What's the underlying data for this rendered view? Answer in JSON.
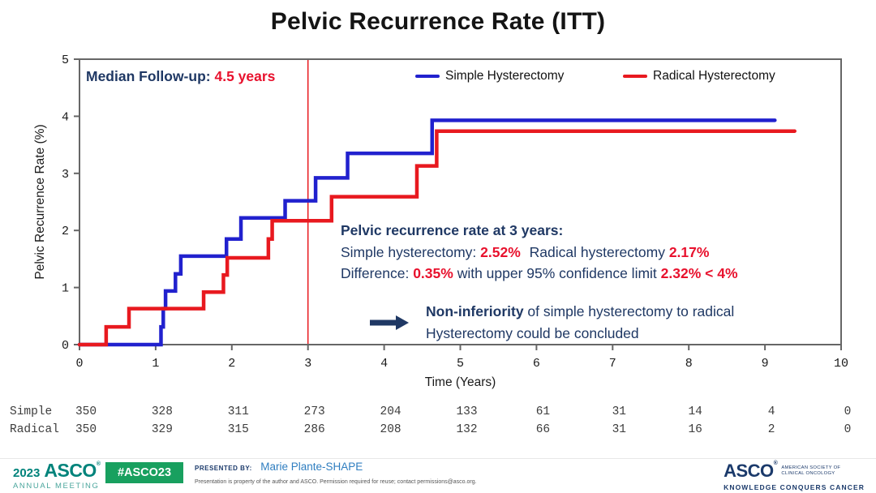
{
  "title": "Pelvic Recurrence Rate (ITT)",
  "median_followup": {
    "label": "Median Follow-up:",
    "value": "4.5 years"
  },
  "annotation": {
    "heading": "Pelvic recurrence rate at 3 years:",
    "simple_label": "Simple hysterectomy:",
    "simple_value": "2.52%",
    "radical_label": "Radical hysterectomy",
    "radical_value": "2.17%",
    "diff_label": "Difference:",
    "diff_value": "0.35%",
    "diff_mid": "with upper 95% confidence limit",
    "diff_limit": "2.32% < 4%"
  },
  "conclusion": {
    "bold": "Non-inferiority",
    "line1_rest": " of simple hysterectomy to radical",
    "line2": "Hysterectomy could be concluded"
  },
  "chart_data": {
    "type": "line",
    "step": true,
    "title": "Pelvic Recurrence Rate (ITT)",
    "xlabel": "Time (Years)",
    "ylabel": "Pelvic Recurrence Rate (%)",
    "xlim": [
      0,
      10
    ],
    "ylim": [
      0,
      5
    ],
    "x_ticks": [
      0,
      1,
      2,
      3,
      4,
      5,
      6,
      7,
      8,
      9,
      10
    ],
    "y_ticks": [
      0,
      1,
      2,
      3,
      4,
      5
    ],
    "grid": false,
    "legend_position": "top-inside",
    "reference_line_x": 3,
    "series": [
      {
        "name": "Simple Hysterectomy",
        "color": "#2121CE",
        "start": [
          0,
          0
        ],
        "steps": [
          [
            1.07,
            0.31
          ],
          [
            1.1,
            0.63
          ],
          [
            1.13,
            0.94
          ],
          [
            1.26,
            1.24
          ],
          [
            1.33,
            1.55
          ],
          [
            1.93,
            1.85
          ],
          [
            2.12,
            2.22
          ],
          [
            2.7,
            2.52
          ],
          [
            3.1,
            2.92
          ],
          [
            3.52,
            3.35
          ],
          [
            4.63,
            3.93
          ]
        ],
        "end_x": 9.13,
        "value_at_3_years": "2.52%"
      },
      {
        "name": "Radical Hysterectomy",
        "color": "#E8191F",
        "start": [
          0,
          0
        ],
        "steps": [
          [
            0.35,
            0.31
          ],
          [
            0.65,
            0.63
          ],
          [
            1.63,
            0.92
          ],
          [
            1.89,
            1.22
          ],
          [
            1.94,
            1.52
          ],
          [
            2.48,
            1.85
          ],
          [
            2.53,
            2.17
          ],
          [
            3.31,
            2.59
          ],
          [
            4.43,
            3.13
          ],
          [
            4.69,
            3.74
          ]
        ],
        "end_x": 9.39,
        "value_at_3_years": "2.17%"
      }
    ],
    "at_risk_table": {
      "time_points": [
        0,
        1,
        2,
        3,
        4,
        5,
        6,
        7,
        8,
        9,
        10
      ],
      "rows": [
        {
          "label": "Simple",
          "counts": [
            "350",
            "328",
            "311",
            "273",
            "204",
            "133",
            "61",
            "31",
            "14",
            "4",
            "0"
          ]
        },
        {
          "label": "Radical",
          "counts": [
            "350",
            "329",
            "315",
            "286",
            "208",
            "132",
            "66",
            "31",
            "16",
            "2",
            "0"
          ]
        }
      ]
    }
  },
  "footer": {
    "meeting_year": "2023",
    "meeting_logo": "ASCO",
    "meeting_reg": "®",
    "meeting_sub": "ANNUAL MEETING",
    "hashtag": "#ASCO23",
    "presented_by_label": "PRESENTED BY:",
    "presenter": "Marie Plante-SHAPE",
    "disclaimer": "Presentation is property of the author and ASCO. Permission required for reuse; contact permissions@asco.org.",
    "org_logo": "ASCO",
    "org_reg": "®",
    "org_name_line1": "AMERICAN SOCIETY OF",
    "org_name_line2": "CLINICAL ONCOLOGY",
    "org_tagline": "KNOWLEDGE CONQUERS CANCER"
  },
  "colors": {
    "navy_text": "#1F3864",
    "red_text": "#E8112D",
    "simple_curve": "#2121CE",
    "radical_curve": "#E8191F",
    "axis": "#666666",
    "badge_green": "#18A05F",
    "meeting_teal": "#00837B",
    "org_navy": "#1B3A6B"
  }
}
